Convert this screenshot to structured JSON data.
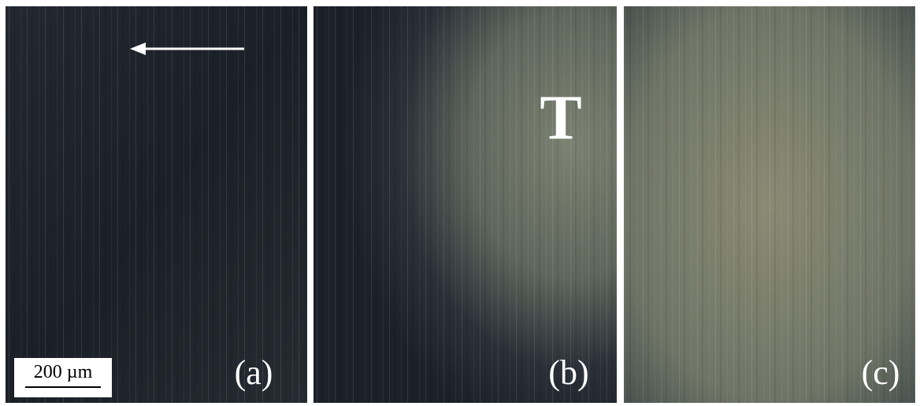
{
  "panels": [
    {
      "label": "(a)"
    },
    {
      "label": "(b)",
      "annotation": "T"
    },
    {
      "label": "(c)"
    }
  ],
  "scale_bar": {
    "label": "200 µm"
  }
}
